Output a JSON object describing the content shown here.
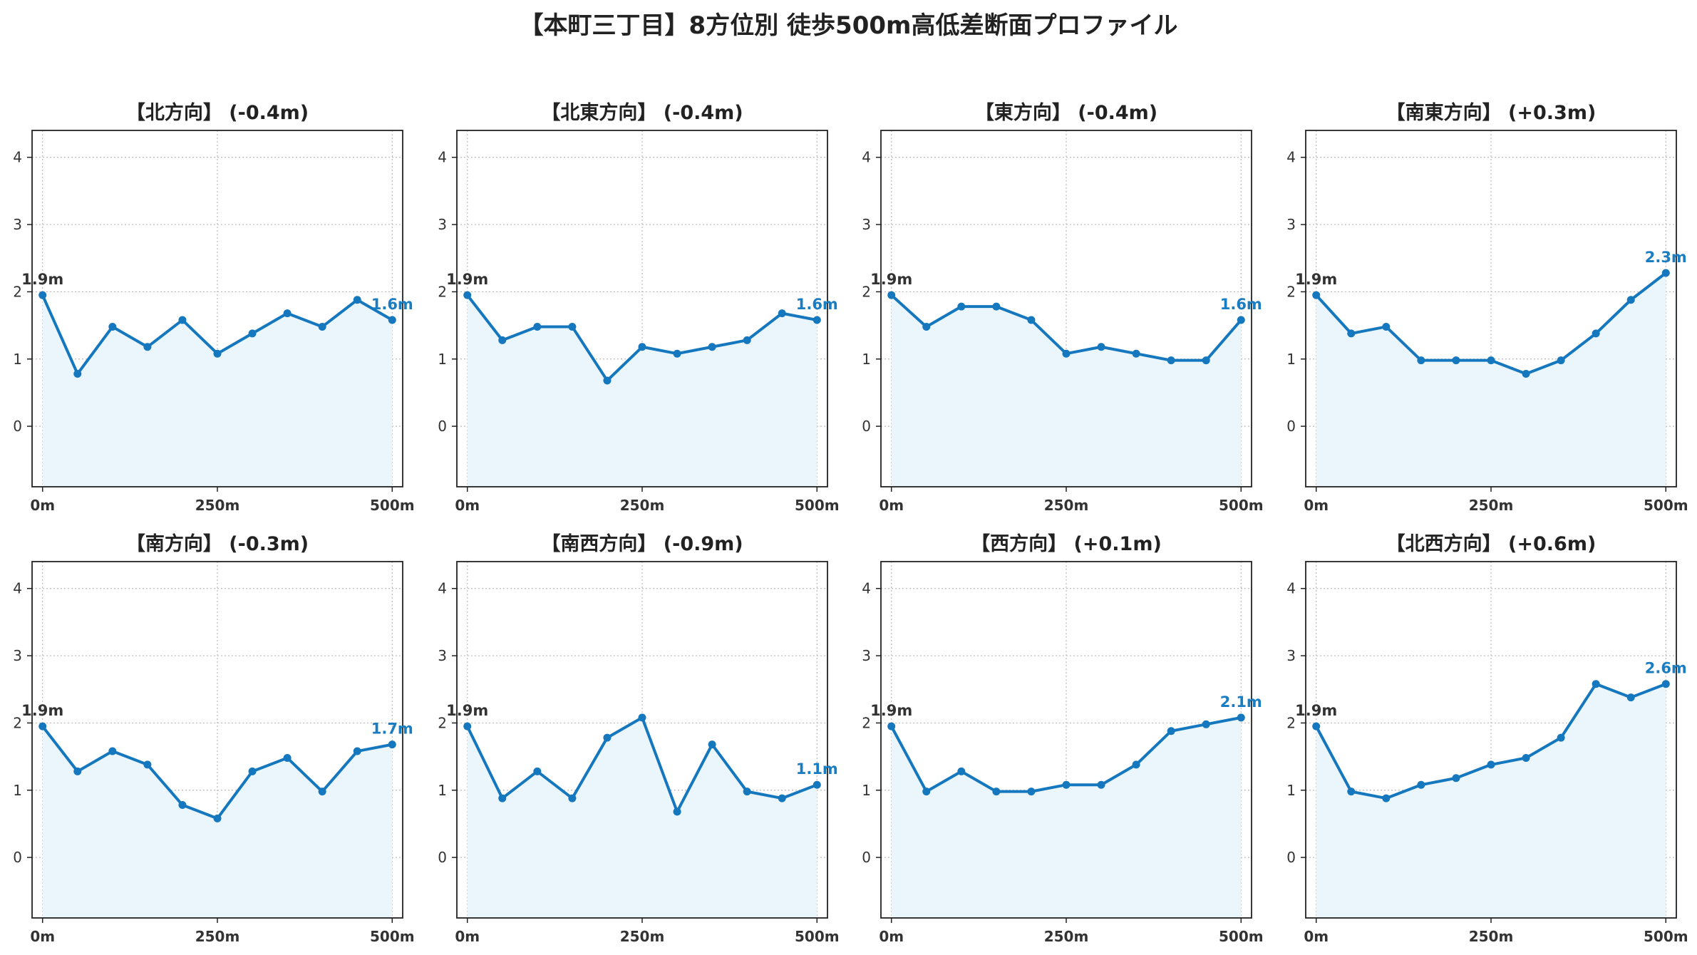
{
  "title": "【本町三丁目】8方位別 徒歩500m高低差断面プロファイル",
  "colors": {
    "line": "#1577bd",
    "fill": "#eaf6fc",
    "end_label": "#1a7dc1",
    "start_label": "#333333",
    "grid": "#bbbbbb"
  },
  "chart_data": [
    {
      "type": "area",
      "title": "【北方向】 (-0.4m)",
      "x": [
        0,
        50,
        100,
        150,
        200,
        250,
        300,
        350,
        400,
        450,
        500
      ],
      "y": [
        1.95,
        0.78,
        1.48,
        1.18,
        1.58,
        1.08,
        1.38,
        1.68,
        1.48,
        1.88,
        1.58
      ],
      "x_ticks": [
        "0m",
        "250m",
        "500m"
      ],
      "y_ticks": [
        0,
        1,
        2,
        3,
        4
      ],
      "xlim": [
        -15,
        515
      ],
      "ylim": [
        -0.9,
        4.4
      ],
      "grid": true,
      "start_label": "1.9m",
      "end_label": "1.6m"
    },
    {
      "type": "area",
      "title": "【北東方向】 (-0.4m)",
      "x": [
        0,
        50,
        100,
        150,
        200,
        250,
        300,
        350,
        400,
        450,
        500
      ],
      "y": [
        1.95,
        1.28,
        1.48,
        1.48,
        0.68,
        1.18,
        1.08,
        1.18,
        1.28,
        1.68,
        1.58
      ],
      "x_ticks": [
        "0m",
        "250m",
        "500m"
      ],
      "y_ticks": [
        0,
        1,
        2,
        3,
        4
      ],
      "xlim": [
        -15,
        515
      ],
      "ylim": [
        -0.9,
        4.4
      ],
      "grid": true,
      "start_label": "1.9m",
      "end_label": "1.6m"
    },
    {
      "type": "area",
      "title": "【東方向】 (-0.4m)",
      "x": [
        0,
        50,
        100,
        150,
        200,
        250,
        300,
        350,
        400,
        450,
        500
      ],
      "y": [
        1.95,
        1.48,
        1.78,
        1.78,
        1.58,
        1.08,
        1.18,
        1.08,
        0.98,
        0.98,
        1.58
      ],
      "x_ticks": [
        "0m",
        "250m",
        "500m"
      ],
      "y_ticks": [
        0,
        1,
        2,
        3,
        4
      ],
      "xlim": [
        -15,
        515
      ],
      "ylim": [
        -0.9,
        4.4
      ],
      "grid": true,
      "start_label": "1.9m",
      "end_label": "1.6m"
    },
    {
      "type": "area",
      "title": "【南東方向】 (+0.3m)",
      "x": [
        0,
        50,
        100,
        150,
        200,
        250,
        300,
        350,
        400,
        450,
        500
      ],
      "y": [
        1.95,
        1.38,
        1.48,
        0.98,
        0.98,
        0.98,
        0.78,
        0.98,
        1.38,
        1.88,
        2.28
      ],
      "x_ticks": [
        "0m",
        "250m",
        "500m"
      ],
      "y_ticks": [
        0,
        1,
        2,
        3,
        4
      ],
      "xlim": [
        -15,
        515
      ],
      "ylim": [
        -0.9,
        4.4
      ],
      "grid": true,
      "start_label": "1.9m",
      "end_label": "2.3m"
    },
    {
      "type": "area",
      "title": "【南方向】 (-0.3m)",
      "x": [
        0,
        50,
        100,
        150,
        200,
        250,
        300,
        350,
        400,
        450,
        500
      ],
      "y": [
        1.95,
        1.28,
        1.58,
        1.38,
        0.78,
        0.58,
        1.28,
        1.48,
        0.98,
        1.58,
        1.68
      ],
      "x_ticks": [
        "0m",
        "250m",
        "500m"
      ],
      "y_ticks": [
        0,
        1,
        2,
        3,
        4
      ],
      "xlim": [
        -15,
        515
      ],
      "ylim": [
        -0.9,
        4.4
      ],
      "grid": true,
      "start_label": "1.9m",
      "end_label": "1.7m"
    },
    {
      "type": "area",
      "title": "【南西方向】 (-0.9m)",
      "x": [
        0,
        50,
        100,
        150,
        200,
        250,
        300,
        350,
        400,
        450,
        500
      ],
      "y": [
        1.95,
        0.88,
        1.28,
        0.88,
        1.78,
        2.08,
        0.68,
        1.68,
        0.98,
        0.88,
        1.08
      ],
      "x_ticks": [
        "0m",
        "250m",
        "500m"
      ],
      "y_ticks": [
        0,
        1,
        2,
        3,
        4
      ],
      "xlim": [
        -15,
        515
      ],
      "ylim": [
        -0.9,
        4.4
      ],
      "grid": true,
      "start_label": "1.9m",
      "end_label": "1.1m"
    },
    {
      "type": "area",
      "title": "【西方向】 (+0.1m)",
      "x": [
        0,
        50,
        100,
        150,
        200,
        250,
        300,
        350,
        400,
        450,
        500
      ],
      "y": [
        1.95,
        0.98,
        1.28,
        0.98,
        0.98,
        1.08,
        1.08,
        1.38,
        1.88,
        1.98,
        2.08
      ],
      "x_ticks": [
        "0m",
        "250m",
        "500m"
      ],
      "y_ticks": [
        0,
        1,
        2,
        3,
        4
      ],
      "xlim": [
        -15,
        515
      ],
      "ylim": [
        -0.9,
        4.4
      ],
      "grid": true,
      "start_label": "1.9m",
      "end_label": "2.1m"
    },
    {
      "type": "area",
      "title": "【北西方向】 (+0.6m)",
      "x": [
        0,
        50,
        100,
        150,
        200,
        250,
        300,
        350,
        400,
        450,
        500
      ],
      "y": [
        1.95,
        0.98,
        0.88,
        1.08,
        1.18,
        1.38,
        1.48,
        1.78,
        2.58,
        2.38,
        2.58
      ],
      "x_ticks": [
        "0m",
        "250m",
        "500m"
      ],
      "y_ticks": [
        0,
        1,
        2,
        3,
        4
      ],
      "xlim": [
        -15,
        515
      ],
      "ylim": [
        -0.9,
        4.4
      ],
      "grid": true,
      "start_label": "1.9m",
      "end_label": "2.6m"
    }
  ]
}
